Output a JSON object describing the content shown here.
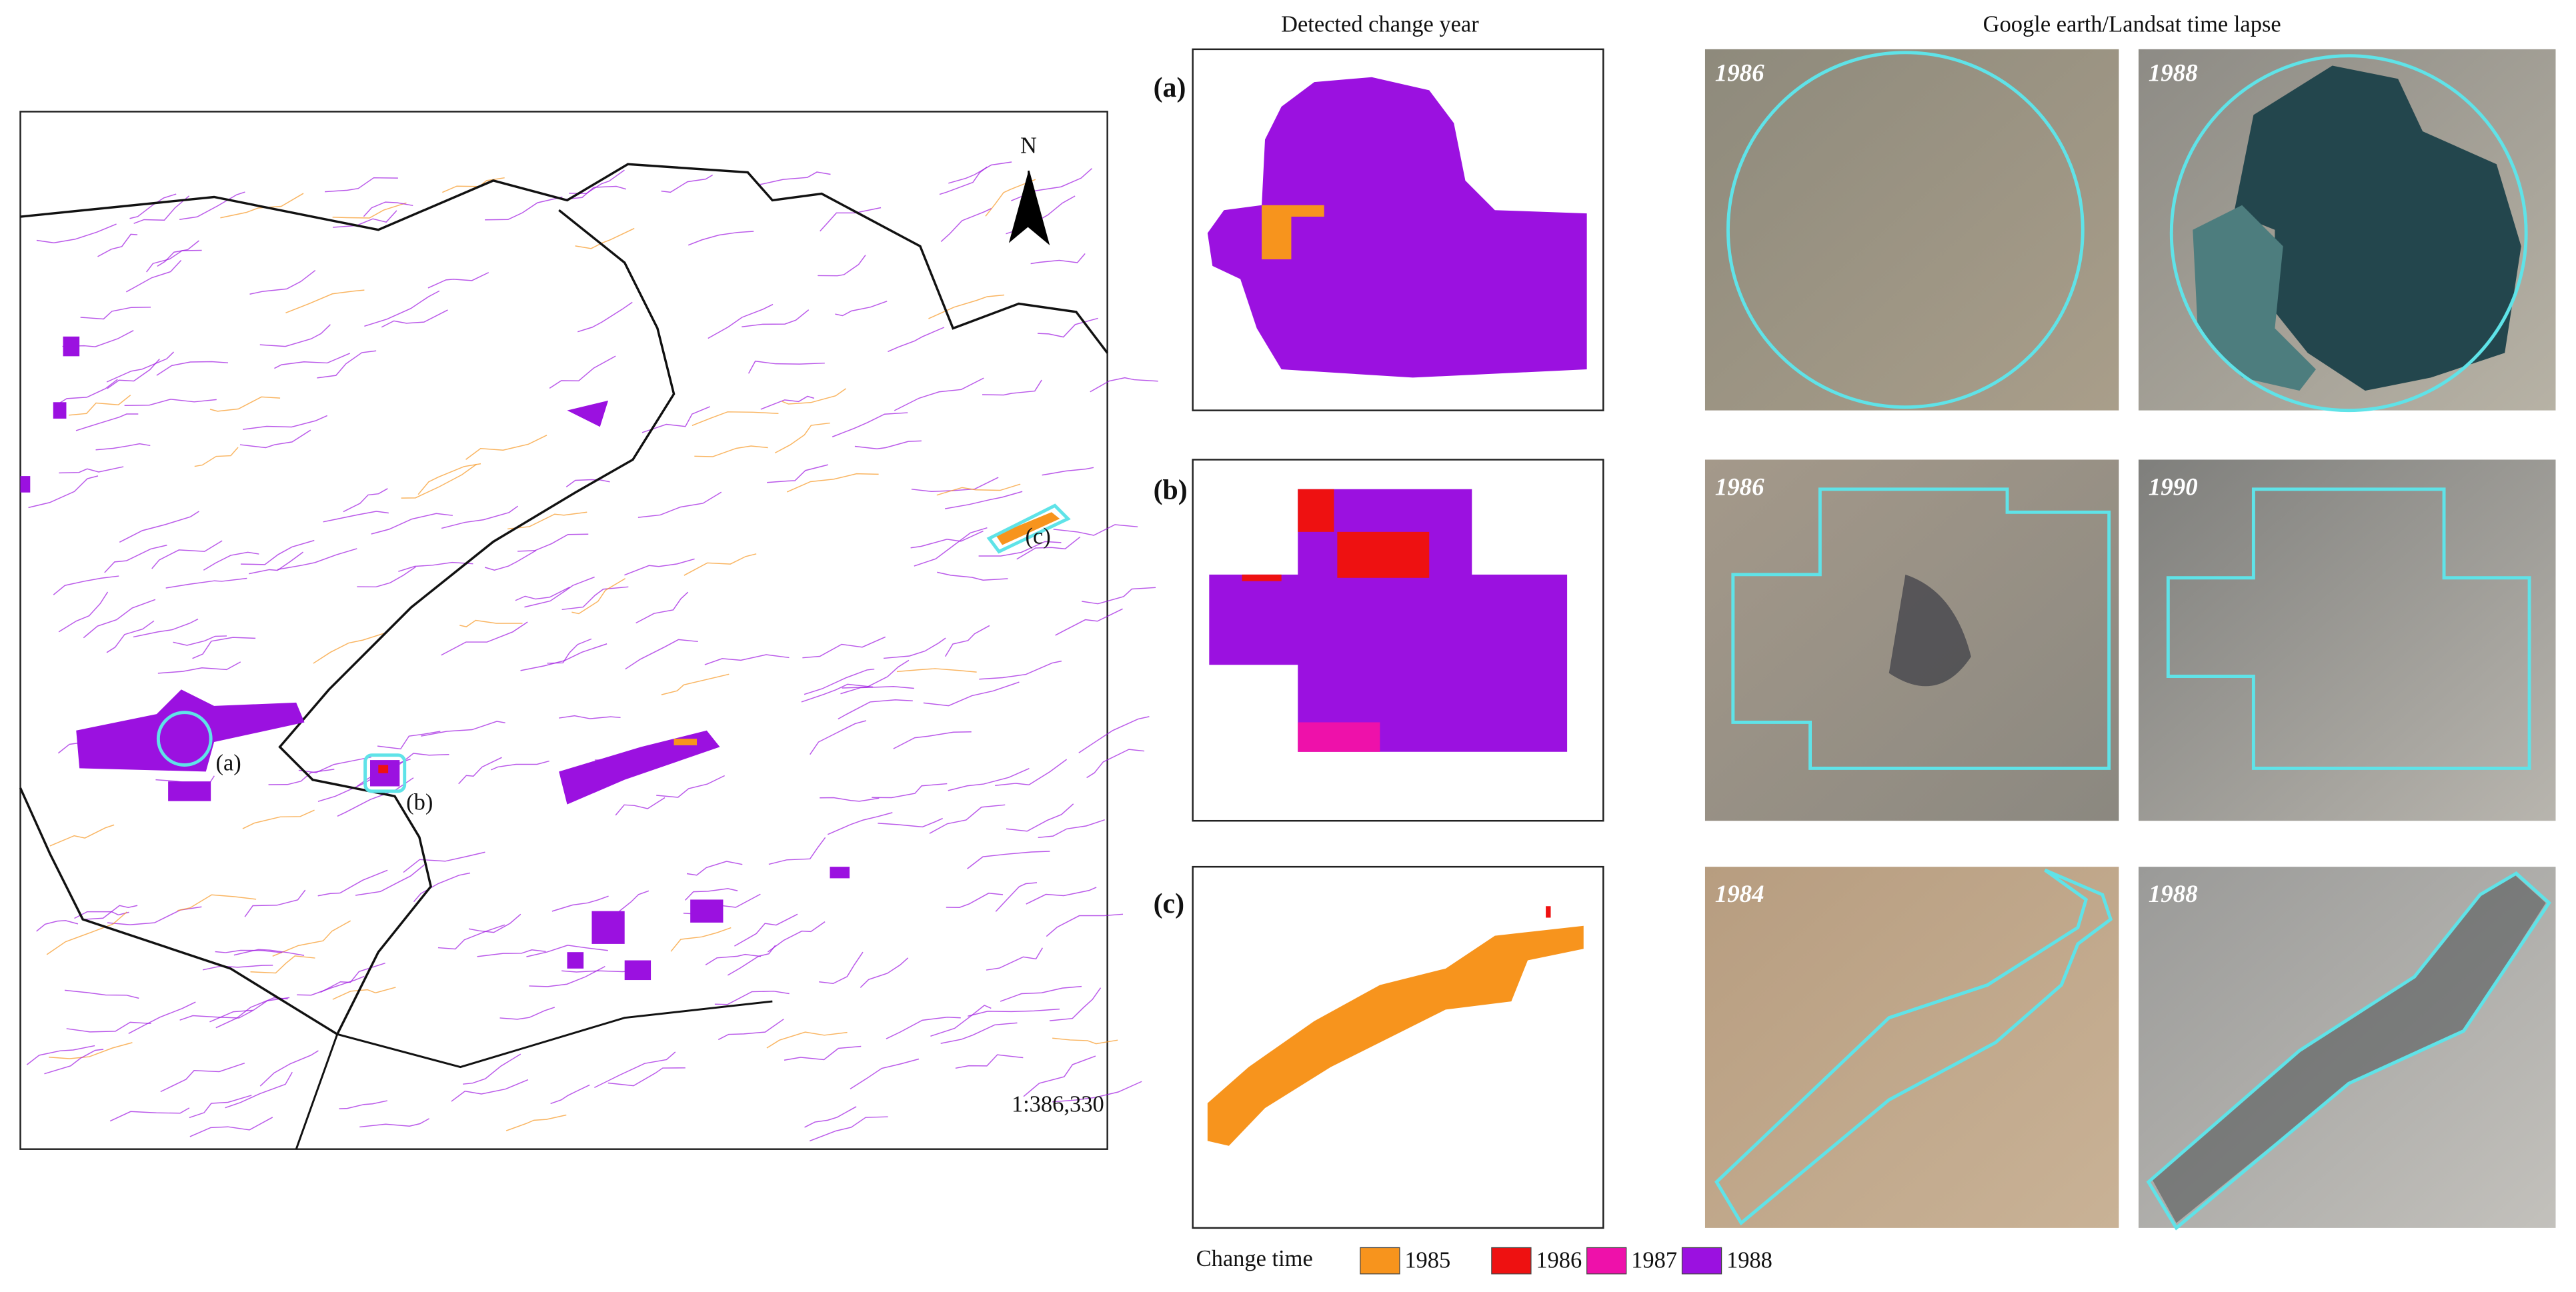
{
  "map": {
    "north_label": "N",
    "scale": "1:386,330",
    "site_labels": [
      "(a)",
      "(b)",
      "(c)"
    ]
  },
  "columns": {
    "detected": "Detected change year",
    "timelapse": "Google earth/Landsat time lapse"
  },
  "panels": [
    {
      "label": "(a)",
      "years": [
        "1986",
        "1988"
      ]
    },
    {
      "label": "(b)",
      "years": [
        "1986",
        "1990"
      ]
    },
    {
      "label": "(c)",
      "years": [
        "1984",
        "1988"
      ]
    }
  ],
  "legend": {
    "title": "Change time",
    "items": [
      {
        "label": "1985",
        "color": "#f7941d"
      },
      {
        "label": "1986",
        "color": "#ee1111"
      },
      {
        "label": "1987",
        "color": "#ee11aa"
      },
      {
        "label": "1988",
        "color": "#9b11e0"
      }
    ]
  }
}
